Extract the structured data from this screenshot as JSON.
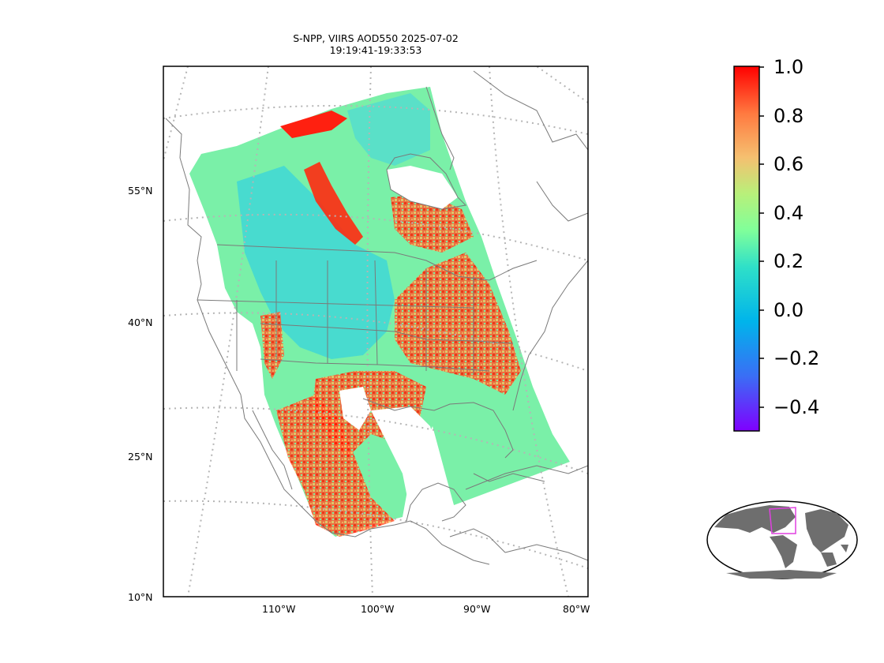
{
  "title": {
    "line1": "S-NPP, VIIRS AOD550 2025-07-02",
    "line2": "19:19:41-19:33:53"
  },
  "lat_labels": [
    "55°N",
    "40°N",
    "25°N",
    "10°N"
  ],
  "lon_labels": [
    "110°W",
    "100°W",
    "90°W",
    "80°W"
  ],
  "colorbar": {
    "ticks": [
      "1.0",
      "0.8",
      "0.6",
      "0.4",
      "0.2",
      "0.0",
      "−0.2",
      "−0.4"
    ],
    "range": [
      -0.5,
      1.0
    ],
    "colormap": "rainbow"
  },
  "inset": {
    "box_color": "#e040e0",
    "land_color": "#6e6e6e"
  }
}
